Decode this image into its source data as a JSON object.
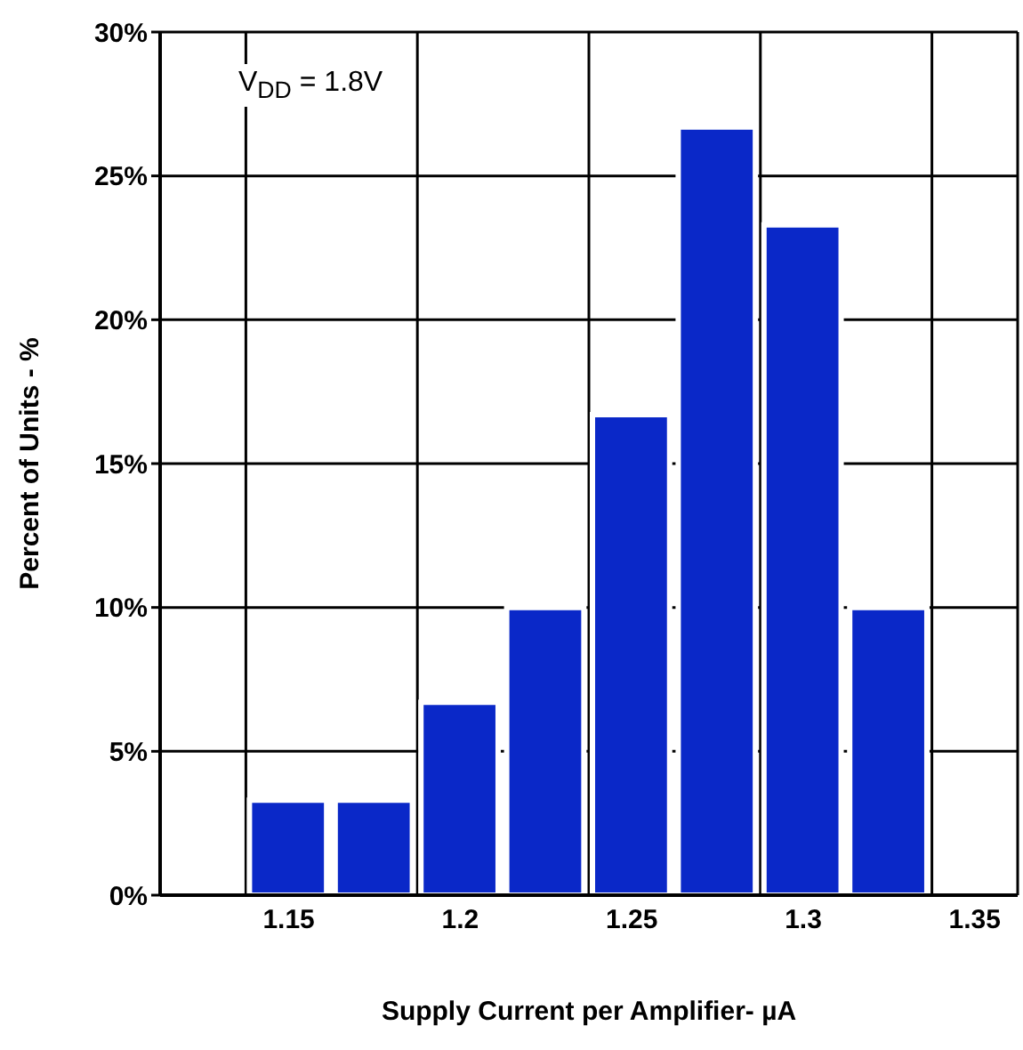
{
  "chart_data": {
    "type": "histogram",
    "xlabel": "Supply Current per Amplifier- µA",
    "ylabel": "Percent of Units - %",
    "annotations": [
      "V$_{DD}$ = 1.8V"
    ],
    "bins": [
      1.1375,
      1.1625,
      1.1875,
      1.2125,
      1.2375,
      1.2625,
      1.2875,
      1.3125,
      1.3375
    ],
    "values": [
      3.3,
      3.3,
      6.7,
      10,
      16.7,
      26.7,
      23.3,
      10
    ],
    "color": "#0a28c8",
    "xlim": [
      1.1125,
      1.3625
    ],
    "xticks": [
      1.15,
      1.2,
      1.25,
      1.3,
      1.35,
      {
        "value": 1.1375,
        "label": null
      },
      {
        "value": 1.1875,
        "label": null
      },
      {
        "value": 1.2375,
        "label": null
      },
      {
        "value": 1.2875,
        "label": null
      },
      {
        "value": 1.3375,
        "label": null
      }
    ],
    "ylim": [
      0,
      30
    ],
    "yticks": [
      {
        "value": 0,
        "label": "0%"
      },
      {
        "value": 5,
        "label": "5%"
      },
      {
        "value": 10,
        "label": "10%"
      },
      {
        "value": 15,
        "label": "15%"
      },
      {
        "value": 20,
        "label": "20%"
      },
      {
        "value": 25,
        "label": "25%"
      },
      {
        "value": 30,
        "label": "30%"
      }
    ],
    "grid": true
  }
}
